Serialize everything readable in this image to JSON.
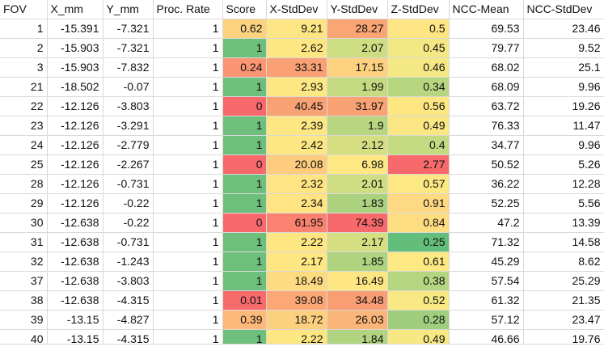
{
  "sheet": {
    "columns": [
      "FOV",
      "X_mm",
      "Y_mm",
      "Proc. Rate",
      "Score",
      "X-StdDev",
      "Y-StdDev",
      "Z-StdDev",
      "NCC-Mean",
      "NCC-StdDev"
    ],
    "rows": [
      [
        "1",
        "-15.391",
        "-7.321",
        "1",
        "0.62",
        "9.21",
        "28.27",
        "0.5",
        "69.53",
        "23.46"
      ],
      [
        "2",
        "-15.903",
        "-7.321",
        "1",
        "1",
        "2.62",
        "2.07",
        "0.45",
        "79.77",
        "9.52"
      ],
      [
        "3",
        "-15.903",
        "-7.832",
        "1",
        "0.24",
        "33.31",
        "17.15",
        "0.46",
        "68.02",
        "25.1"
      ],
      [
        "21",
        "-18.502",
        "-0.07",
        "1",
        "1",
        "2.93",
        "1.99",
        "0.34",
        "68.09",
        "9.96"
      ],
      [
        "22",
        "-12.126",
        "-3.803",
        "1",
        "0",
        "40.45",
        "31.97",
        "0.56",
        "63.72",
        "19.26"
      ],
      [
        "23",
        "-12.126",
        "-3.291",
        "1",
        "1",
        "2.39",
        "1.9",
        "0.49",
        "76.33",
        "11.47"
      ],
      [
        "24",
        "-12.126",
        "-2.779",
        "1",
        "1",
        "2.42",
        "2.12",
        "0.4",
        "34.77",
        "9.96"
      ],
      [
        "25",
        "-12.126",
        "-2.267",
        "1",
        "0",
        "20.08",
        "6.98",
        "2.77",
        "50.52",
        "5.26"
      ],
      [
        "28",
        "-12.126",
        "-0.731",
        "1",
        "1",
        "2.32",
        "2.01",
        "0.57",
        "36.22",
        "12.28"
      ],
      [
        "29",
        "-12.126",
        "-0.22",
        "1",
        "1",
        "2.34",
        "1.83",
        "0.91",
        "52.25",
        "5.56"
      ],
      [
        "30",
        "-12.638",
        "-0.22",
        "1",
        "0",
        "61.95",
        "74.39",
        "0.84",
        "47.2",
        "13.39"
      ],
      [
        "31",
        "-12.638",
        "-0.731",
        "1",
        "1",
        "2.22",
        "2.17",
        "0.25",
        "71.32",
        "14.58"
      ],
      [
        "32",
        "-12.638",
        "-1.243",
        "1",
        "1",
        "2.17",
        "1.85",
        "0.61",
        "45.29",
        "8.62"
      ],
      [
        "37",
        "-12.638",
        "-3.803",
        "1",
        "1",
        "18.49",
        "16.49",
        "0.38",
        "57.54",
        "25.29"
      ],
      [
        "38",
        "-12.638",
        "-4.315",
        "1",
        "0.01",
        "39.08",
        "34.48",
        "0.52",
        "61.32",
        "21.35"
      ],
      [
        "39",
        "-13.15",
        "-4.827",
        "1",
        "0.39",
        "18.72",
        "26.03",
        "0.28",
        "57.12",
        "23.47"
      ],
      [
        "40",
        "-13.15",
        "-4.315",
        "1",
        "1",
        "2.22",
        "1.84",
        "0.49",
        "46.66",
        "19.76"
      ]
    ],
    "cell_fills": [
      [
        null,
        null,
        null,
        null,
        "#fcd27f",
        "#fee583",
        "#f9a574",
        "#fee583",
        null,
        null
      ],
      [
        null,
        null,
        null,
        null,
        "#6ebf7c",
        "#fde783",
        "#cddd81",
        "#f4e884",
        null,
        null
      ],
      [
        null,
        null,
        null,
        null,
        "#fb9574",
        "#f9a174",
        "#fdd17f",
        "#f4e884",
        null,
        null
      ],
      [
        null,
        null,
        null,
        null,
        "#6ebf7c",
        "#fde783",
        "#c6db81",
        "#b7d680",
        null,
        null
      ],
      [
        null,
        null,
        null,
        null,
        "#f8696b",
        "#f9a375",
        "#f9a374",
        "#fee783",
        null,
        null
      ],
      [
        null,
        null,
        null,
        null,
        "#6ebf7c",
        "#fde783",
        "#b8d67f",
        "#fae783",
        null,
        null
      ],
      [
        null,
        null,
        null,
        null,
        "#6ebf7c",
        "#fde783",
        "#d5df82",
        "#c5db81",
        null,
        null
      ],
      [
        null,
        null,
        null,
        null,
        "#f8696b",
        "#fdcc7e",
        "#fee883",
        "#f8696b",
        null,
        null
      ],
      [
        null,
        null,
        null,
        null,
        "#6ebf7c",
        "#fee483",
        "#cfde82",
        "#fde883",
        null,
        null
      ],
      [
        null,
        null,
        null,
        null,
        "#6ebf7c",
        "#fee483",
        "#acd27f",
        "#fdd983",
        null,
        null
      ],
      [
        null,
        null,
        null,
        null,
        "#f8696b",
        "#f98370",
        "#f8696b",
        "#fedd81",
        null,
        null
      ],
      [
        null,
        null,
        null,
        null,
        "#6ebf7c",
        "#fee683",
        "#d5df82",
        "#63be7b",
        null,
        null
      ],
      [
        null,
        null,
        null,
        null,
        "#6ebf7c",
        "#fee683",
        "#afd480",
        "#fde983",
        null,
        null
      ],
      [
        null,
        null,
        null,
        null,
        "#6ebf7c",
        "#fddb81",
        "#fee783",
        "#b4d680",
        null,
        null
      ],
      [
        null,
        null,
        null,
        null,
        "#f86b6b",
        "#fba876",
        "#f99d73",
        "#f8e883",
        null,
        null
      ],
      [
        null,
        null,
        null,
        null,
        "#fdb87a",
        "#fdd07f",
        "#fbb579",
        "#9fcf7e",
        null,
        null
      ],
      [
        null,
        null,
        null,
        null,
        "#6ebf7c",
        "#fde783",
        "#b0d47f",
        "#f8e883",
        null,
        null
      ]
    ]
  }
}
